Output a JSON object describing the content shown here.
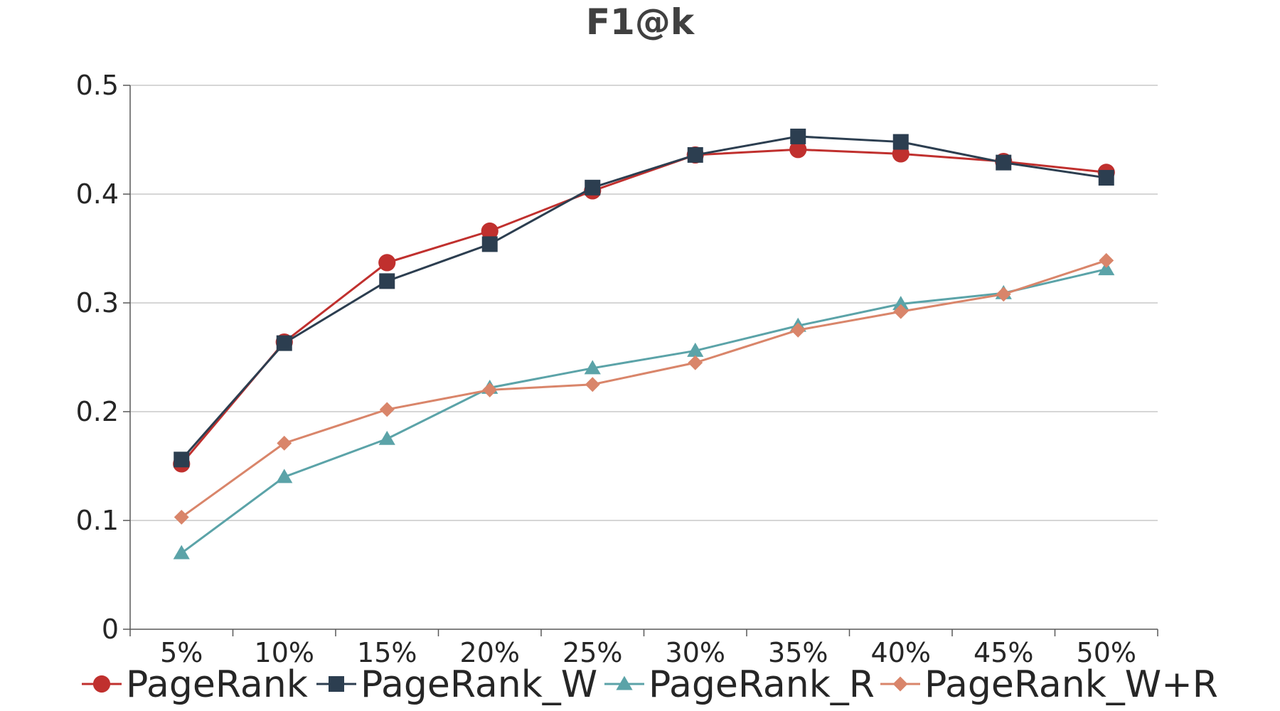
{
  "chart_data": {
    "type": "line",
    "title": "F1@k",
    "xlabel": "",
    "ylabel": "",
    "categories": [
      "5%",
      "10%",
      "15%",
      "20%",
      "25%",
      "30%",
      "35%",
      "40%",
      "45%",
      "50%"
    ],
    "ylim": [
      0,
      0.5
    ],
    "yticks": [
      0,
      0.1,
      0.2,
      0.3,
      0.4,
      0.5
    ],
    "ytick_labels": [
      "0",
      "0.1",
      "0.2",
      "0.3",
      "0.4",
      "0.5"
    ],
    "grid": true,
    "legend_position": "bottom",
    "series": [
      {
        "name": "PageRank",
        "color": "#c0302e",
        "marker": "circle",
        "values": [
          0.152,
          0.264,
          0.337,
          0.366,
          0.403,
          0.436,
          0.441,
          0.437,
          0.43,
          0.42
        ]
      },
      {
        "name": "PageRank_W",
        "color": "#2c3e50",
        "marker": "square",
        "values": [
          0.156,
          0.263,
          0.32,
          0.354,
          0.406,
          0.436,
          0.453,
          0.448,
          0.429,
          0.415
        ]
      },
      {
        "name": "PageRank_R",
        "color": "#5ba3a8",
        "marker": "triangle",
        "values": [
          0.07,
          0.14,
          0.175,
          0.222,
          0.24,
          0.256,
          0.279,
          0.299,
          0.309,
          0.331
        ]
      },
      {
        "name": "PageRank_W+R",
        "color": "#d9856a",
        "marker": "diamond",
        "values": [
          0.103,
          0.171,
          0.202,
          0.22,
          0.225,
          0.245,
          0.275,
          0.292,
          0.308,
          0.339
        ]
      }
    ]
  }
}
